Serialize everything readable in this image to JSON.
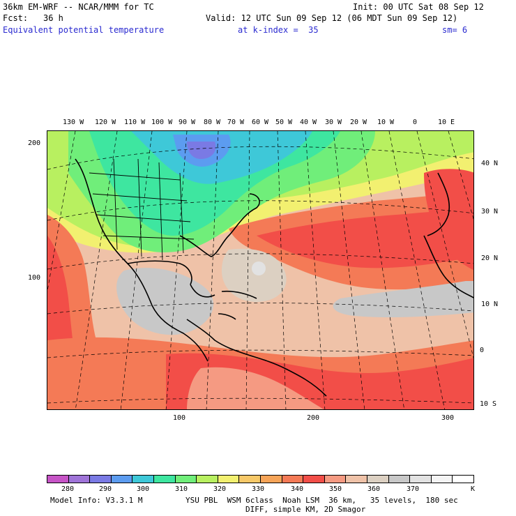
{
  "header": {
    "line1_left": "36km EM-WRF -- NCAR/MMM for TC",
    "line1_right": "Init: 00 UTC Sat 08 Sep 12",
    "line2_left_label": "Fcst:",
    "line2_left_value": "36 h",
    "line2_right": "Valid: 12 UTC Sun 09 Sep 12 (06 MDT Sun 09 Sep 12)",
    "line3_field": "Equivalent potential temperature",
    "line3_level": "at k-index =  35",
    "line3_sm": "sm= 6"
  },
  "map": {
    "top_longitudes": [
      "130 W",
      "120 W",
      "110 W",
      "100 W",
      "90 W",
      "80 W",
      "70 W",
      "60 W",
      "50 W",
      "40 W",
      "30 W",
      "20 W",
      "10 W",
      "0",
      "10 E"
    ],
    "right_latitudes": [
      "40 N",
      "30 N",
      "20 N",
      "10 N",
      "0",
      "10 S"
    ],
    "left_grid": [
      "200",
      "100"
    ],
    "bottom_grid": [
      "100",
      "200",
      "300"
    ]
  },
  "legend": {
    "labels": [
      "280",
      "290",
      "300",
      "310",
      "320",
      "330",
      "340",
      "350",
      "360",
      "370"
    ],
    "unit": "K",
    "colors": [
      "#c654c6",
      "#9f74d8",
      "#7a7ae4",
      "#5c9cf0",
      "#3ec8d8",
      "#3ee6a0",
      "#70ee7a",
      "#b8f060",
      "#f2f070",
      "#f6c868",
      "#f6a458",
      "#f47a56",
      "#f24e48",
      "#f59a82",
      "#efc2a8",
      "#dcd0c2",
      "#c8c8c8",
      "#e2e2e2",
      "#f4f4f4",
      "#ffffff"
    ]
  },
  "footer": {
    "line1_left": "Model Info: V3.3.1 M",
    "line1_right": "YSU PBL  WSM 6class  Noah LSM  36 km,   35 levels,  180 sec",
    "line2": "DIFF, simple KM, 2D Smagor"
  }
}
